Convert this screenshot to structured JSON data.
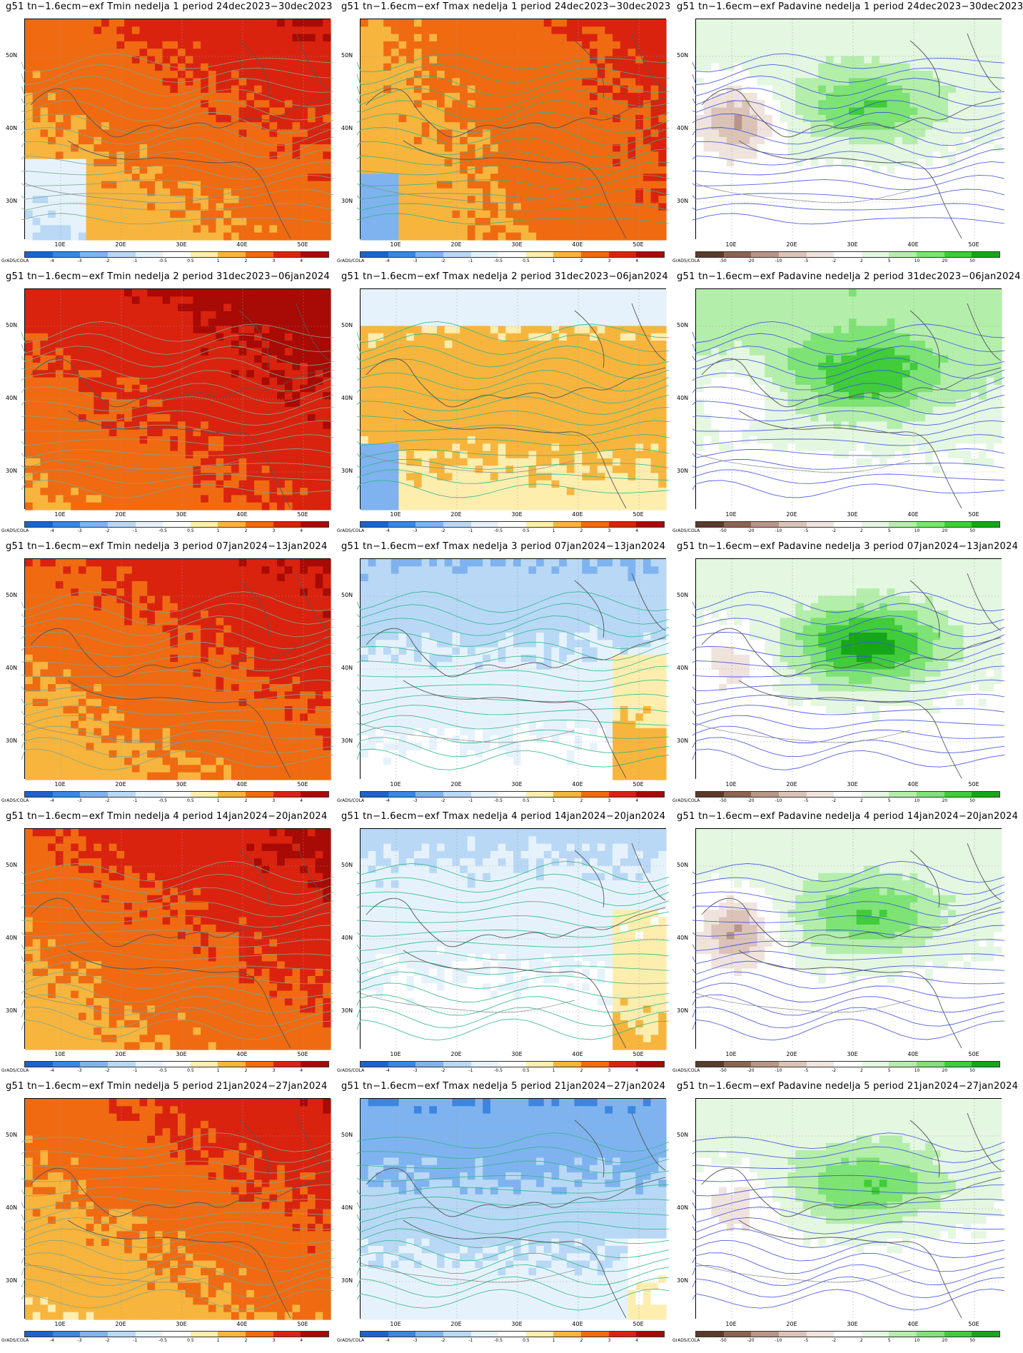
{
  "model_prefix": "g51 tn−1.6ecm−exf",
  "credit": "GrADS/COLA",
  "lat_labels": [
    "50N",
    "40N",
    "30N"
  ],
  "lon_labels": [
    "10E",
    "20E",
    "30E",
    "40E",
    "50E"
  ],
  "temp_levels": [
    "-4",
    "-3",
    "-2",
    "-1",
    "-0.5",
    "0.5",
    "1",
    "2",
    "3",
    "4"
  ],
  "precip_levels": [
    "-50",
    "-20",
    "-10",
    "-5",
    "-2",
    "2",
    "5",
    "10",
    "20",
    "50"
  ],
  "colors": {
    "temp": [
      "#1c64cc",
      "#3a86e0",
      "#7fb3ef",
      "#b8d8f6",
      "#e6f2fb",
      "#ffffff",
      "#fdeeae",
      "#f7b53e",
      "#f06a12",
      "#d9230f",
      "#a80a05"
    ],
    "precip": [
      "#5a3a2a",
      "#8c6450",
      "#b89586",
      "#dbc3b8",
      "#f0e3dd",
      "#ffffff",
      "#e4f7e1",
      "#b4eeab",
      "#7de374",
      "#40cc3b",
      "#17a61a"
    ]
  },
  "rows": [
    {
      "week": "1",
      "period": "24dec2023−30dec2023"
    },
    {
      "week": "2",
      "period": "31dec2023−06jan2024"
    },
    {
      "week": "3",
      "period": "07jan2024−13jan2024"
    },
    {
      "week": "4",
      "period": "14jan2024−20jan2024"
    },
    {
      "week": "5",
      "period": "21jan2024−27jan2024"
    }
  ],
  "panels": [
    {
      "title": "g51 tn−1.6ecm−exf Tmin nedelja 1 period 24dec2023−30dec2023",
      "kind": "temp",
      "field": "Tmin",
      "week": 1
    },
    {
      "title": "g51 tn−1.6ecm−exf Tmax nedelja 1 period 24dec2023−30dec2023",
      "kind": "temp",
      "field": "Tmax",
      "week": 1
    },
    {
      "title": "g51 tn−1.6ecm−exf Padavine nedelja 1 period 24dec2023−30dec2023",
      "kind": "precip",
      "field": "Padavine",
      "week": 1
    },
    {
      "title": "g51 tn−1.6ecm−exf Tmin nedelja 2 period 31dec2023−06jan2024",
      "kind": "temp",
      "field": "Tmin",
      "week": 2
    },
    {
      "title": "g51 tn−1.6ecm−exf Tmax nedelja 2 period 31dec2023−06jan2024",
      "kind": "temp",
      "field": "Tmax",
      "week": 2
    },
    {
      "title": "g51 tn−1.6ecm−exf Padavine nedelja 2 period 31dec2023−06jan2024",
      "kind": "precip",
      "field": "Padavine",
      "week": 2
    },
    {
      "title": "g51 tn−1.6ecm−exf Tmin nedelja 3 period 07jan2024−13jan2024",
      "kind": "temp",
      "field": "Tmin",
      "week": 3
    },
    {
      "title": "g51 tn−1.6ecm−exf Tmax nedelja 3 period 07jan2024−13jan2024",
      "kind": "temp",
      "field": "Tmax",
      "week": 3
    },
    {
      "title": "g51 tn−1.6ecm−exf Padavine nedelja 3 period 07jan2024−13jan2024",
      "kind": "precip",
      "field": "Padavine",
      "week": 3
    },
    {
      "title": "g51 tn−1.6ecm−exf Tmin nedelja 4 period 14jan2024−20jan2024",
      "kind": "temp",
      "field": "Tmin",
      "week": 4
    },
    {
      "title": "g51 tn−1.6ecm−exf Tmax nedelja 4 period 14jan2024−20jan2024",
      "kind": "temp",
      "field": "Tmax",
      "week": 4
    },
    {
      "title": "g51 tn−1.6ecm−exf Padavine nedelja 4 period 14jan2024−20jan2024",
      "kind": "precip",
      "field": "Padavine",
      "week": 4
    },
    {
      "title": "g51 tn−1.6ecm−exf Tmin nedelja 5 period 21jan2024−27jan2024",
      "kind": "temp",
      "field": "Tmin",
      "week": 5
    },
    {
      "title": "g51 tn−1.6ecm−exf Tmax nedelja 5 period 21jan2024−27jan2024",
      "kind": "temp",
      "field": "Tmax",
      "week": 5
    },
    {
      "title": "g51 tn−1.6ecm−exf Padavine nedelja 5 period 21jan2024−27jan2024",
      "kind": "precip",
      "field": "Padavine",
      "week": 5
    }
  ]
}
